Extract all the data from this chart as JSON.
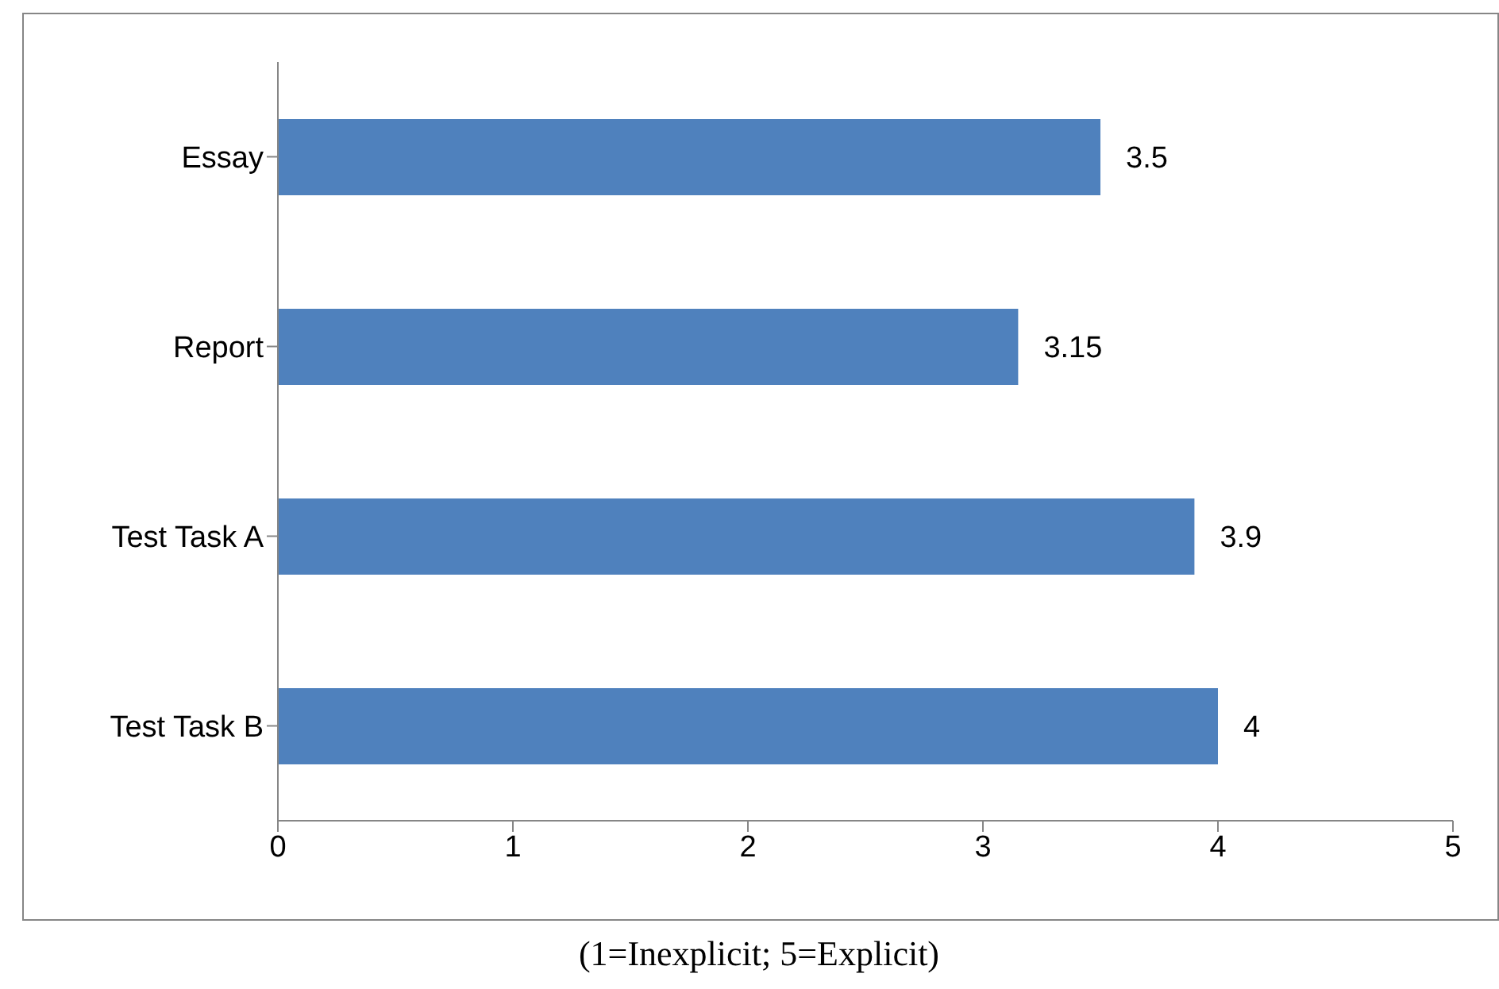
{
  "chart_data": {
    "type": "bar",
    "orientation": "horizontal",
    "categories": [
      "Essay",
      "Report",
      "Test Task A",
      "Test Task B"
    ],
    "values": [
      3.5,
      3.15,
      3.9,
      4
    ],
    "color": "#4f81bd",
    "xlim": [
      0,
      5
    ],
    "xticks": [
      0,
      1,
      2,
      3,
      4,
      5
    ],
    "data_labels": true,
    "annotations": [
      "(1=Inexplicit; 5=Explicit)"
    ]
  }
}
